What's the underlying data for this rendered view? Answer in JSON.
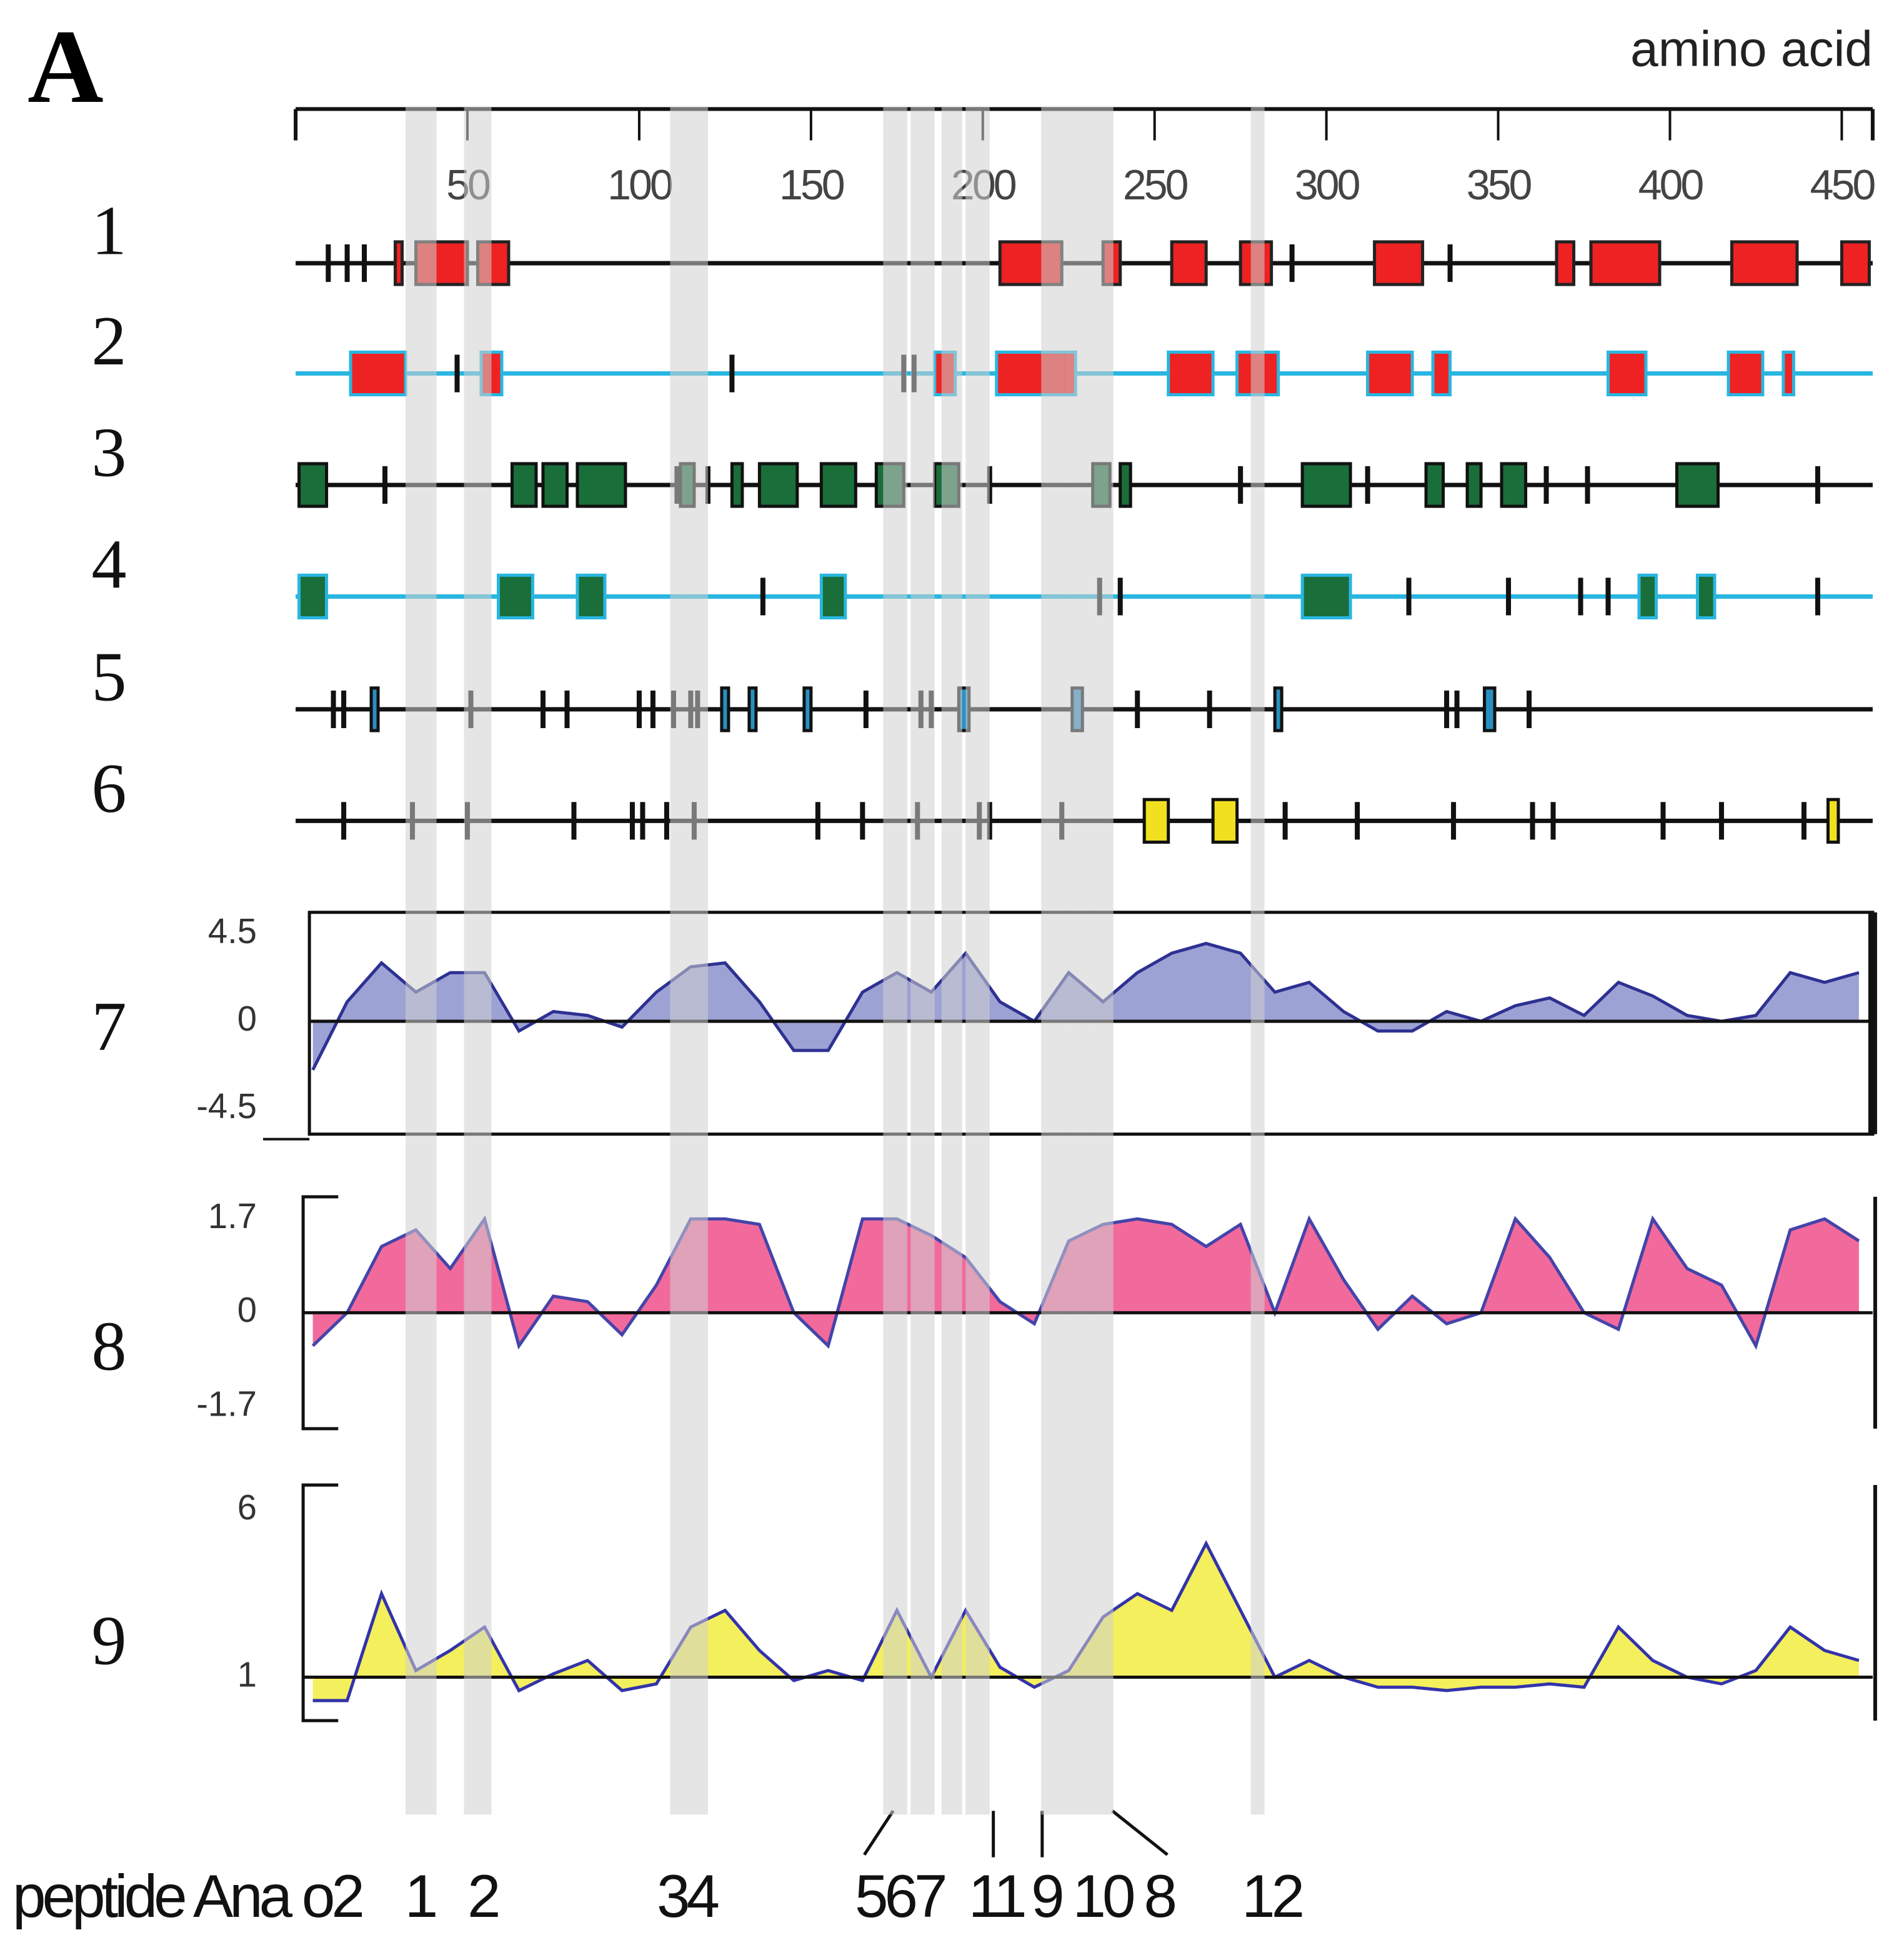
{
  "panel_label": "A",
  "chart_data": [
    {
      "type": "feature-tracks",
      "xlabel": "amino acid",
      "xlim": [
        0,
        459
      ],
      "xticks": [
        50,
        100,
        150,
        200,
        250,
        300,
        350,
        400,
        450
      ],
      "tracks": [
        {
          "name": "1",
          "line_color": "#111111",
          "feature_color": "#ee2222",
          "edge_color": "#222222",
          "features": [
            [
              9.5,
              9.5
            ],
            [
              15,
              15
            ],
            [
              20,
              20
            ],
            [
              29,
              31
            ],
            [
              35,
              50
            ],
            [
              53,
              62
            ],
            [
              205,
              223
            ],
            [
              235,
              240
            ],
            [
              255,
              265
            ],
            [
              275,
              284
            ],
            [
              290,
              290
            ],
            [
              314,
              328
            ],
            [
              336,
              336
            ],
            [
              367,
              372
            ],
            [
              377,
              397
            ],
            [
              418,
              437
            ],
            [
              450,
              458
            ]
          ]
        },
        {
          "name": "2",
          "line_color": "#29b6e0",
          "feature_color": "#ee2222",
          "edge_color": "#29b6e0",
          "features": [
            [
              16,
              32
            ],
            [
              47,
              47
            ],
            [
              54,
              60
            ],
            [
              127,
              127
            ],
            [
              177,
              177
            ],
            [
              180,
              180
            ],
            [
              186,
              192
            ],
            [
              204,
              227
            ],
            [
              254,
              267
            ],
            [
              274,
              286
            ],
            [
              312,
              325
            ],
            [
              331,
              336
            ],
            [
              382,
              393
            ],
            [
              417,
              427
            ],
            [
              433,
              436
            ]
          ]
        },
        {
          "name": "3",
          "line_color": "#111111",
          "feature_color": "#1a6e3a",
          "edge_color": "#111111",
          "features": [
            [
              1,
              9
            ],
            [
              26,
              26
            ],
            [
              63,
              70
            ],
            [
              72,
              79
            ],
            [
              82,
              96
            ],
            [
              111,
              111
            ],
            [
              112,
              116
            ],
            [
              120,
              120
            ],
            [
              127,
              130
            ],
            [
              135,
              146
            ],
            [
              153,
              163
            ],
            [
              169,
              177
            ],
            [
              186,
              193
            ],
            [
              202,
              202
            ],
            [
              232,
              237
            ],
            [
              240,
              243
            ],
            [
              275,
              275
            ],
            [
              293,
              307
            ],
            [
              312,
              312
            ],
            [
              329,
              334
            ],
            [
              341,
              345
            ],
            [
              351,
              358
            ],
            [
              364,
              364
            ],
            [
              376,
              376
            ],
            [
              402,
              414
            ],
            [
              443,
              443
            ]
          ]
        },
        {
          "name": "4",
          "line_color": "#29b6e0",
          "feature_color": "#1a6e3a",
          "edge_color": "#29b6e0",
          "features": [
            [
              1,
              9
            ],
            [
              59,
              69
            ],
            [
              82,
              90
            ],
            [
              136,
              136
            ],
            [
              153,
              160
            ],
            [
              234,
              234
            ],
            [
              240,
              240
            ],
            [
              293,
              307
            ],
            [
              324,
              324
            ],
            [
              353,
              353
            ],
            [
              374,
              374
            ],
            [
              382,
              382
            ],
            [
              391,
              396
            ],
            [
              408,
              413
            ],
            [
              443,
              443
            ]
          ]
        },
        {
          "name": "5",
          "line_color": "#111111",
          "feature_color": "#2a8fc0",
          "edge_color": "#111111",
          "features": [
            [
              11,
              11
            ],
            [
              14,
              14
            ],
            [
              22,
              24
            ],
            [
              51,
              51
            ],
            [
              72,
              72
            ],
            [
              79,
              79
            ],
            [
              100,
              100
            ],
            [
              104,
              104
            ],
            [
              110,
              110
            ],
            [
              115,
              115
            ],
            [
              117,
              117
            ],
            [
              124,
              126
            ],
            [
              132,
              134
            ],
            [
              148,
              150
            ],
            [
              166,
              166
            ],
            [
              182,
              182
            ],
            [
              185,
              185
            ],
            [
              193,
              196
            ],
            [
              226,
              229
            ],
            [
              245,
              245
            ],
            [
              266,
              266
            ],
            [
              285,
              287
            ],
            [
              335,
              335
            ],
            [
              338,
              338
            ],
            [
              346,
              349
            ],
            [
              359,
              359
            ]
          ]
        },
        {
          "name": "6",
          "line_color": "#111111",
          "feature_color": "#f0e020",
          "edge_color": "#111111",
          "features": [
            [
              14,
              14
            ],
            [
              34,
              34
            ],
            [
              50,
              50
            ],
            [
              81,
              81
            ],
            [
              98,
              98
            ],
            [
              101,
              101
            ],
            [
              108,
              108
            ],
            [
              116,
              116
            ],
            [
              152,
              152
            ],
            [
              165,
              165
            ],
            [
              181,
              181
            ],
            [
              199,
              199
            ],
            [
              202,
              202
            ],
            [
              223,
              223
            ],
            [
              247,
              254
            ],
            [
              267,
              274
            ],
            [
              288,
              288
            ],
            [
              309,
              309
            ],
            [
              337,
              337
            ],
            [
              360,
              360
            ],
            [
              366,
              366
            ],
            [
              398,
              398
            ],
            [
              415,
              415
            ],
            [
              439,
              439
            ],
            [
              446,
              449
            ]
          ]
        }
      ]
    },
    {
      "type": "profile",
      "name": "7",
      "xlim": [
        0,
        459
      ],
      "ylim": [
        -5.8,
        5.6
      ],
      "yticks": [
        -4.5,
        0,
        4.5
      ],
      "baseline": 0,
      "fill": "#8c92cc",
      "line_color": "#2e3192",
      "x": [
        5,
        15,
        25,
        35,
        45,
        55,
        65,
        75,
        85,
        95,
        105,
        115,
        125,
        135,
        145,
        155,
        165,
        175,
        185,
        195,
        205,
        215,
        225,
        235,
        245,
        255,
        265,
        275,
        285,
        295,
        305,
        315,
        325,
        335,
        345,
        355,
        365,
        375,
        385,
        395,
        405,
        415,
        425,
        435,
        445,
        455
      ],
      "values": [
        -2.5,
        1.0,
        3.0,
        1.5,
        2.5,
        2.5,
        -0.5,
        0.5,
        0.3,
        -0.3,
        1.5,
        2.8,
        3.0,
        1.0,
        -1.5,
        -1.5,
        1.5,
        2.5,
        1.5,
        3.5,
        1.0,
        0,
        2.5,
        1.0,
        2.5,
        3.5,
        4.0,
        3.5,
        1.5,
        2.0,
        0.5,
        -0.5,
        -0.5,
        0.5,
        0,
        0.8,
        1.2,
        0.3,
        2.0,
        1.3,
        0.3,
        0,
        0.3,
        2.5,
        2.0,
        2.5
      ]
    },
    {
      "type": "profile",
      "name": "8",
      "xlim": [
        0,
        459
      ],
      "ylim": [
        -2.1,
        2.1
      ],
      "yticks": [
        -1.7,
        0,
        1.7
      ],
      "baseline": 0,
      "fill": "#f0508a",
      "line_color": "#4444aa",
      "x": [
        5,
        15,
        25,
        35,
        45,
        55,
        65,
        75,
        85,
        95,
        105,
        115,
        125,
        135,
        145,
        155,
        165,
        175,
        185,
        195,
        205,
        215,
        225,
        235,
        245,
        255,
        265,
        275,
        285,
        295,
        305,
        315,
        325,
        335,
        345,
        355,
        365,
        375,
        385,
        395,
        405,
        415,
        425,
        435,
        445,
        455
      ],
      "values": [
        -0.6,
        0,
        1.2,
        1.5,
        0.8,
        1.7,
        -0.6,
        0.3,
        0.2,
        -0.4,
        0.5,
        1.7,
        1.7,
        1.6,
        0,
        -0.6,
        1.7,
        1.7,
        1.4,
        1.0,
        0.2,
        -0.2,
        1.3,
        1.6,
        1.7,
        1.6,
        1.2,
        1.6,
        0,
        1.7,
        0.6,
        -0.3,
        0.3,
        -0.2,
        0,
        1.7,
        1.0,
        0,
        -0.3,
        1.7,
        0.8,
        0.5,
        -0.6,
        1.5,
        1.7,
        1.3
      ]
    },
    {
      "type": "profile",
      "name": "9",
      "xlim": [
        0,
        459
      ],
      "ylim": [
        -0.3,
        6.75
      ],
      "yticks": [
        1,
        6
      ],
      "baseline": 1,
      "fill": "#f2ec40",
      "line_color": "#3333aa",
      "x": [
        5,
        15,
        25,
        35,
        45,
        55,
        65,
        75,
        85,
        95,
        105,
        115,
        125,
        135,
        145,
        155,
        165,
        175,
        185,
        195,
        205,
        215,
        225,
        235,
        245,
        255,
        265,
        275,
        285,
        295,
        305,
        315,
        325,
        335,
        345,
        355,
        365,
        375,
        385,
        395,
        405,
        415,
        425,
        435,
        445,
        455
      ],
      "values": [
        0.3,
        0.3,
        3.5,
        1.2,
        1.8,
        2.5,
        0.6,
        1.1,
        1.5,
        0.6,
        0.8,
        2.5,
        3.0,
        1.8,
        0.9,
        1.2,
        0.9,
        3.0,
        1.0,
        3.0,
        1.3,
        0.7,
        1.2,
        2.8,
        3.5,
        3.0,
        5.0,
        3.0,
        1.0,
        1.5,
        1.0,
        0.7,
        0.7,
        0.6,
        0.7,
        0.7,
        0.8,
        0.7,
        2.5,
        1.5,
        1.0,
        0.8,
        1.2,
        2.5,
        1.8,
        1.5
      ]
    }
  ],
  "peptides": {
    "title": "peptide Ana o2",
    "regions": [
      [
        32,
        41
      ],
      [
        49,
        57
      ],
      [
        109,
        114
      ],
      [
        114,
        120
      ],
      [
        171,
        178
      ],
      [
        179,
        186
      ],
      [
        188,
        194
      ],
      [
        195,
        202
      ],
      [
        217,
        224
      ],
      [
        224,
        231
      ],
      [
        231,
        238
      ],
      [
        278,
        282
      ]
    ],
    "labels": [
      "1",
      "2",
      "34",
      "567",
      "11",
      "9",
      "10",
      "8",
      "12"
    ]
  }
}
